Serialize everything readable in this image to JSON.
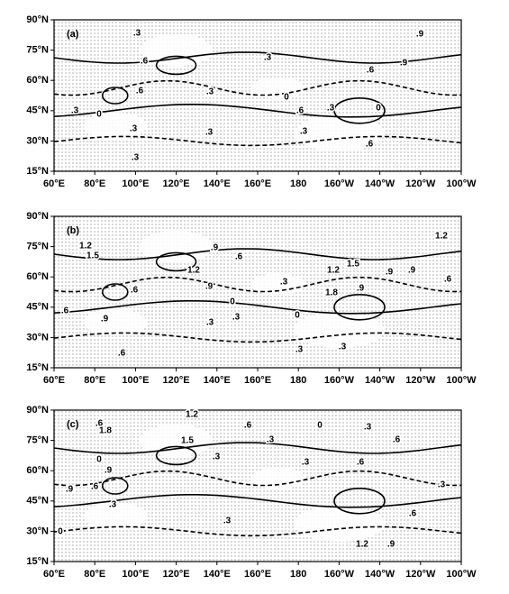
{
  "lat_ticks": [
    "90°N",
    "75°N",
    "60°N",
    "45°N",
    "30°N",
    "15°N"
  ],
  "lon_ticks": [
    "60°E",
    "80°E",
    "100°E",
    "120°E",
    "140°E",
    "160°E",
    "180",
    "160°W",
    "140°W",
    "120°W",
    "100°W"
  ],
  "panels": [
    {
      "label": "(a)",
      "contour_labels": [
        ".3",
        ".9",
        ".6",
        ".3",
        ".6",
        ".9",
        ".6",
        ".3",
        "0",
        ".6",
        ".3",
        "0",
        ".3",
        "0",
        ".3",
        ".3",
        ".3",
        ".6",
        ".3"
      ]
    },
    {
      "label": "(b)",
      "contour_labels": [
        "1.2",
        "1.5",
        ".9",
        ".6",
        "1.2",
        ".9",
        ".3",
        "1.2",
        "1.5",
        "1.2",
        ".9",
        ".9",
        ".6",
        ".9",
        "1.8",
        "0",
        ".6",
        ".6",
        ".9",
        ".3",
        ".3",
        "0",
        ".6",
        ".3",
        ".3"
      ]
    },
    {
      "label": "(c)",
      "contour_labels": [
        "1.2",
        ".6",
        ".6",
        "1.8",
        "0",
        ".3",
        ".6",
        "1.5",
        ".3",
        ".3",
        ".9",
        "0",
        ".3",
        ".6",
        ".9",
        ".6",
        ".3",
        "0",
        ".3",
        "1.2",
        ".9",
        ".6",
        ".3"
      ]
    }
  ]
}
